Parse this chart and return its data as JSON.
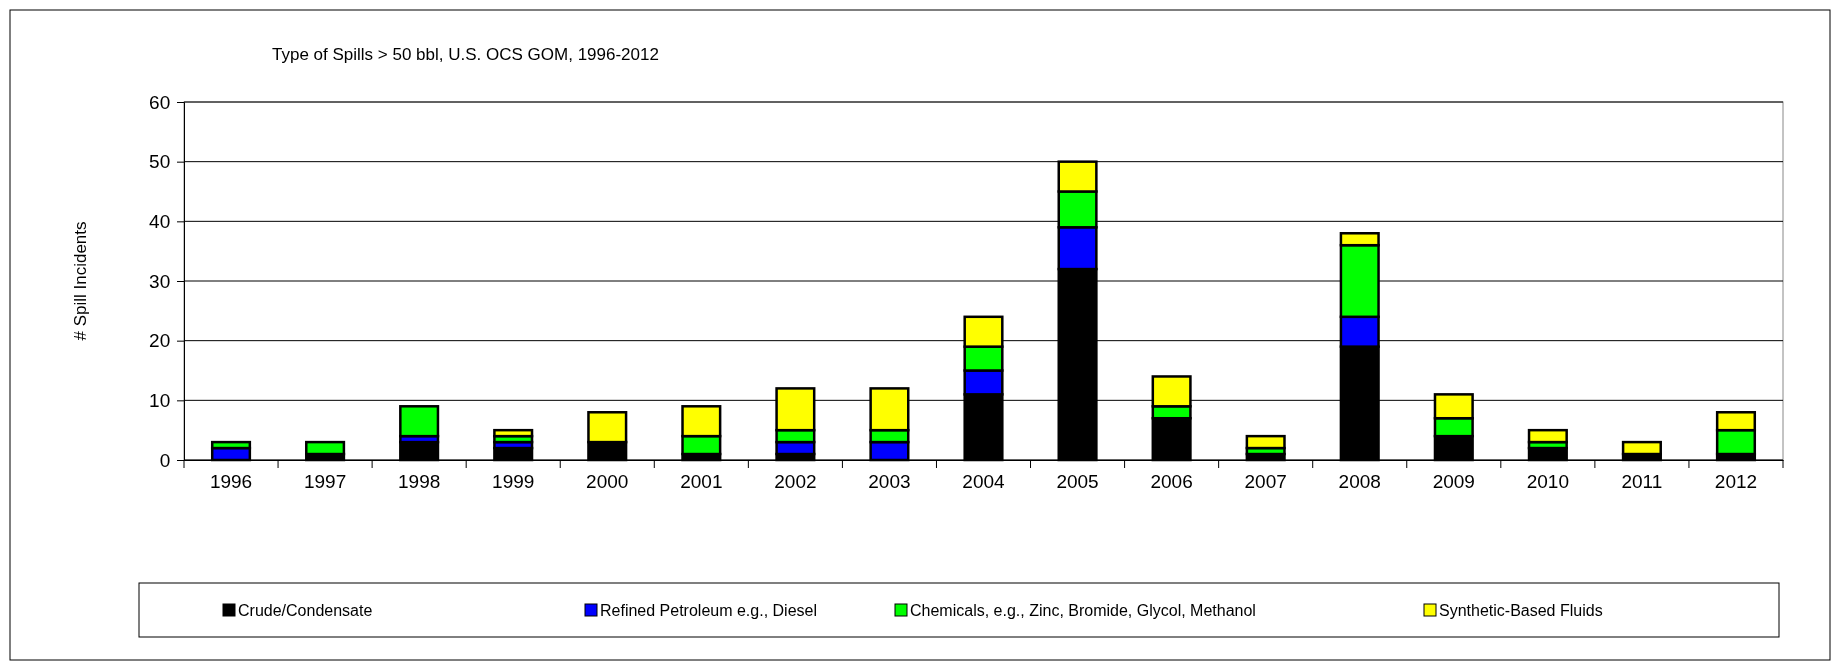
{
  "chart_data": {
    "type": "bar",
    "stacked": true,
    "title": "Type of Spills > 50 bbl, U.S. OCS GOM, 1996-2012",
    "ylabel": "# Spill Incidents",
    "categories": [
      "1996",
      "1997",
      "1998",
      "1999",
      "2000",
      "2001",
      "2002",
      "2003",
      "2004",
      "2005",
      "2006",
      "2007",
      "2008",
      "2009",
      "2010",
      "2011",
      "2012"
    ],
    "series": [
      {
        "name": "Crude/Condensate",
        "color": "#000000",
        "values": [
          0,
          1,
          3,
          2,
          3,
          1,
          1,
          0,
          11,
          32,
          7,
          1,
          19,
          4,
          2,
          1,
          1
        ]
      },
      {
        "name": "Refined Petroleum e.g., Diesel",
        "color": "#0000ff",
        "values": [
          2,
          0,
          1,
          1,
          0,
          0,
          2,
          3,
          4,
          7,
          0,
          0,
          5,
          0,
          0,
          0,
          0
        ]
      },
      {
        "name": "Chemicals, e.g., Zinc, Bromide, Glycol, Methanol",
        "color": "#00ff00",
        "values": [
          1,
          2,
          5,
          1,
          0,
          3,
          2,
          2,
          4,
          6,
          2,
          1,
          12,
          3,
          1,
          0,
          4
        ]
      },
      {
        "name": "Synthetic-Based Fluids",
        "color": "#ffff00",
        "values": [
          0,
          0,
          0,
          1,
          5,
          5,
          7,
          7,
          5,
          5,
          5,
          2,
          2,
          4,
          2,
          2,
          3
        ]
      }
    ],
    "ylim": [
      0,
      60
    ],
    "yticks": [
      0,
      10,
      20,
      30,
      40,
      50,
      60
    ],
    "grid": "y",
    "legend": "bottom"
  }
}
